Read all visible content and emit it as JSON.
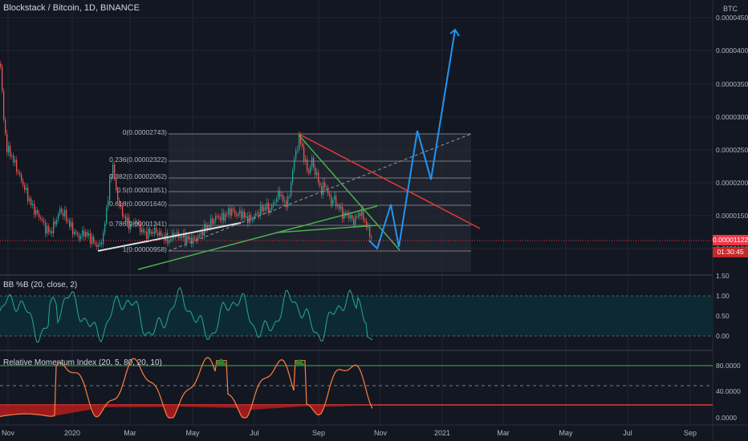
{
  "header": {
    "symbol_title": "Blockstack / Bitcoin, 1D, BINANCE",
    "currency": "BTC"
  },
  "colors": {
    "background": "#131722",
    "candle_up": "#26a69a",
    "candle_down": "#ef5350",
    "projection": "#2196f3",
    "trend_red": "#e53935",
    "trend_green": "#4caf50",
    "bb_fill": "#0d2a33",
    "rmi_line": "#ff7f3f"
  },
  "price_axis": {
    "ticks": [
      "0.00004500",
      "0.00004000",
      "0.00003500",
      "0.00003000",
      "0.00002500",
      "0.00002000",
      "0.00001500",
      "0.00001000"
    ],
    "current_price": "0.00001122",
    "countdown": "01:30:45"
  },
  "fib_levels": [
    {
      "label": "0(0.00002743)"
    },
    {
      "label": "0.236(0.00002322)"
    },
    {
      "label": "0.382(0.00002062)"
    },
    {
      "label": "0.5(0.00001851)"
    },
    {
      "label": "0.618(0.00001640)"
    },
    {
      "label": "0.786(0.00001341)"
    },
    {
      "label": "1(0.00000958)"
    }
  ],
  "bb_panel": {
    "title": "BB %B (20, close, 2)",
    "ticks": [
      "1.50",
      "1.00",
      "0.50",
      "0.00"
    ]
  },
  "rmi_panel": {
    "title": "Relative Momentum Index (20, 5, 80, 20, 10)",
    "ticks": [
      "80.0000",
      "40.0000",
      "0.0000"
    ]
  },
  "time_axis": {
    "labels": [
      "Nov",
      "2020",
      "Mar",
      "May",
      "Jul",
      "Sep",
      "Nov",
      "2021",
      "Mar",
      "May",
      "Jul",
      "Sep"
    ]
  }
}
